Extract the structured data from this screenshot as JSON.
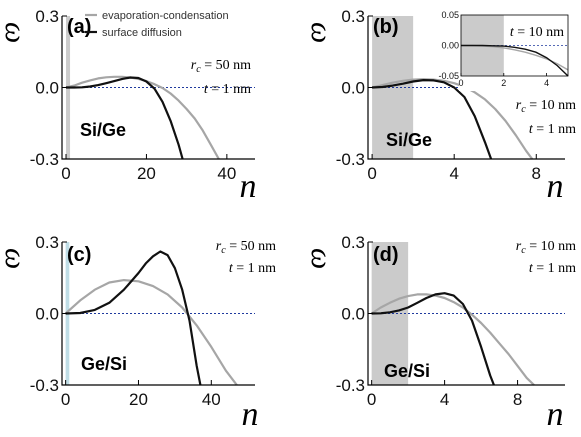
{
  "legend": {
    "items": [
      {
        "label": "evaporation-condensation",
        "color": "#a6a6a6"
      },
      {
        "label": "surface diffusion",
        "color": "#111111"
      }
    ]
  },
  "chart_data": [
    {
      "type": "line",
      "panel": "(a)",
      "material": "Si/Ge",
      "annotations": [
        "r_c = 50 nm",
        "t = 1 nm"
      ],
      "xlabel": "n",
      "ylabel": "ω",
      "xlim": [
        -1,
        47
      ],
      "ylim": [
        -0.3,
        0.3
      ],
      "xticks": [
        0,
        20,
        40
      ],
      "yticks": [
        0.3,
        0.0,
        -0.3
      ],
      "ytick_labels": [
        "0.3",
        "0.0",
        "-0.3"
      ],
      "shaded_region": [
        0,
        1
      ],
      "shade_color": "#cbcbcb",
      "series": [
        {
          "name": "evaporation-condensation",
          "color": "#a6a6a6",
          "x": [
            0,
            2,
            4,
            6,
            8,
            10,
            12,
            14,
            16,
            18,
            20,
            22,
            24,
            26,
            28,
            30,
            32,
            34,
            36,
            38
          ],
          "y": [
            0.0,
            0.008,
            0.02,
            0.03,
            0.038,
            0.043,
            0.045,
            0.045,
            0.042,
            0.036,
            0.027,
            0.014,
            -0.002,
            -0.025,
            -0.055,
            -0.09,
            -0.13,
            -0.18,
            -0.24,
            -0.3
          ]
        },
        {
          "name": "surface diffusion",
          "color": "#111111",
          "x": [
            0,
            2,
            4,
            6,
            8,
            10,
            12,
            14,
            16,
            18,
            20,
            22,
            24,
            26,
            28,
            29
          ],
          "y": [
            0.0,
            0.0,
            0.001,
            0.004,
            0.01,
            0.018,
            0.027,
            0.036,
            0.042,
            0.04,
            0.025,
            -0.005,
            -0.06,
            -0.14,
            -0.24,
            -0.3
          ]
        }
      ]
    },
    {
      "type": "line",
      "panel": "(b)",
      "material": "Si/Ge",
      "annotations": [
        "r_c = 10 nm",
        "t = 1 nm"
      ],
      "xlabel": "n",
      "ylabel": "ω",
      "xlim": [
        -0.2,
        9.4
      ],
      "ylim": [
        -0.3,
        0.3
      ],
      "xticks": [
        0,
        4,
        8
      ],
      "yticks": [
        0.3,
        0.0,
        -0.3
      ],
      "ytick_labels": [
        "0.3",
        "0.0",
        "-0.3"
      ],
      "shaded_region": [
        0,
        2
      ],
      "shade_color": "#cbcbcb",
      "series": [
        {
          "name": "evaporation-condensation",
          "color": "#a6a6a6",
          "x": [
            0,
            0.5,
            1,
            1.5,
            2,
            2.5,
            3,
            3.5,
            4,
            4.5,
            5,
            5.5,
            6,
            6.5,
            7,
            7.5,
            7.8
          ],
          "y": [
            0.0,
            0.01,
            0.02,
            0.028,
            0.033,
            0.035,
            0.033,
            0.028,
            0.018,
            0.003,
            -0.02,
            -0.05,
            -0.09,
            -0.14,
            -0.2,
            -0.265,
            -0.3
          ]
        },
        {
          "name": "surface diffusion",
          "color": "#111111",
          "x": [
            0,
            0.5,
            1,
            1.5,
            2,
            2.5,
            3,
            3.5,
            4,
            4.5,
            5,
            5.5,
            5.8
          ],
          "y": [
            0.0,
            0.002,
            0.008,
            0.016,
            0.025,
            0.031,
            0.03,
            0.022,
            0.0,
            -0.04,
            -0.12,
            -0.23,
            -0.3
          ]
        }
      ],
      "inset": {
        "annotation": "t = 10 nm",
        "xlim": [
          0,
          5
        ],
        "ylim": [
          -0.05,
          0.05
        ],
        "xticks": [
          0,
          2,
          4
        ],
        "yticks": [
          0.05,
          0.0,
          -0.05
        ],
        "ytick_labels": [
          "0.05",
          "0.00",
          "-0.05"
        ],
        "shaded_region": [
          0,
          2
        ],
        "series": [
          {
            "name": "evaporation-condensation",
            "color": "#a6a6a6",
            "x": [
              0,
              0.5,
              1,
              1.5,
              2,
              2.5,
              3,
              3.5,
              4,
              4.5,
              5
            ],
            "y": [
              0.0,
              0.0,
              -0.001,
              -0.002,
              -0.004,
              -0.007,
              -0.011,
              -0.016,
              -0.022,
              -0.03,
              -0.04
            ]
          },
          {
            "name": "surface diffusion",
            "color": "#111111",
            "x": [
              0,
              0.5,
              1,
              1.5,
              2,
              2.5,
              3,
              3.5,
              4,
              4.5,
              5
            ],
            "y": [
              0.0,
              0.0,
              0.0,
              -0.0005,
              -0.001,
              -0.003,
              -0.006,
              -0.011,
              -0.02,
              -0.033,
              -0.05
            ]
          }
        ]
      }
    },
    {
      "type": "line",
      "panel": "(c)",
      "material": "Ge/Si",
      "annotations": [
        "r_c = 50 nm",
        "t = 1 nm"
      ],
      "xlabel": "n",
      "ylabel": "ω",
      "xlim": [
        -1,
        52
      ],
      "ylim": [
        -0.3,
        0.3
      ],
      "xticks": [
        0,
        20,
        40
      ],
      "yticks": [
        0.3,
        0.0,
        -0.3
      ],
      "ytick_labels": [
        "0.3",
        "0.0",
        "-0.3"
      ],
      "shaded_region": [
        0,
        1
      ],
      "shade_color": "#bfdde6",
      "series": [
        {
          "name": "evaporation-condensation",
          "color": "#a6a6a6",
          "x": [
            0,
            4,
            8,
            12,
            16,
            20,
            24,
            28,
            32,
            36,
            40,
            44,
            47
          ],
          "y": [
            0.0,
            0.055,
            0.1,
            0.13,
            0.14,
            0.135,
            0.115,
            0.08,
            0.025,
            -0.05,
            -0.14,
            -0.24,
            -0.3
          ]
        },
        {
          "name": "surface diffusion",
          "color": "#111111",
          "x": [
            0,
            4,
            8,
            12,
            16,
            20,
            22,
            24,
            26,
            28,
            30,
            32,
            34,
            36,
            37
          ],
          "y": [
            0.0,
            0.002,
            0.015,
            0.045,
            0.1,
            0.17,
            0.21,
            0.24,
            0.26,
            0.245,
            0.19,
            0.1,
            -0.03,
            -0.22,
            -0.3
          ]
        }
      ]
    },
    {
      "type": "line",
      "panel": "(d)",
      "material": "Ge/Si",
      "annotations": [
        "r_c = 10 nm",
        "t = 1 nm"
      ],
      "xlabel": "n",
      "ylabel": "ω",
      "xlim": [
        -0.2,
        10.6
      ],
      "ylim": [
        -0.3,
        0.3
      ],
      "xticks": [
        0,
        4,
        8
      ],
      "yticks": [
        0.3,
        0.0,
        -0.3
      ],
      "ytick_labels": [
        "0.3",
        "0.0",
        "-0.3"
      ],
      "shaded_region": [
        0,
        2
      ],
      "shade_color": "#cbcbcb",
      "series": [
        {
          "name": "evaporation-condensation",
          "color": "#a6a6a6",
          "x": [
            0,
            0.5,
            1,
            1.5,
            2,
            2.5,
            3,
            3.5,
            4,
            4.5,
            5,
            5.5,
            6,
            6.5,
            7,
            7.5,
            8,
            8.5,
            8.9
          ],
          "y": [
            0.0,
            0.025,
            0.045,
            0.062,
            0.073,
            0.08,
            0.08,
            0.075,
            0.065,
            0.048,
            0.025,
            -0.005,
            -0.04,
            -0.08,
            -0.125,
            -0.17,
            -0.22,
            -0.27,
            -0.3
          ]
        },
        {
          "name": "surface diffusion",
          "color": "#111111",
          "x": [
            0,
            0.5,
            1,
            1.5,
            2,
            2.5,
            3,
            3.5,
            4,
            4.5,
            5,
            5.5,
            6,
            6.5,
            6.7
          ],
          "y": [
            0.0,
            0.001,
            0.005,
            0.013,
            0.025,
            0.045,
            0.065,
            0.08,
            0.085,
            0.075,
            0.04,
            -0.03,
            -0.14,
            -0.26,
            -0.3
          ]
        }
      ]
    }
  ]
}
